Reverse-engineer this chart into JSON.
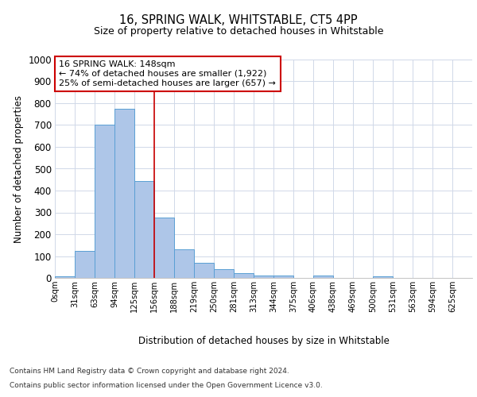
{
  "title": "16, SPRING WALK, WHITSTABLE, CT5 4PP",
  "subtitle": "Size of property relative to detached houses in Whitstable",
  "xlabel": "Distribution of detached houses by size in Whitstable",
  "ylabel": "Number of detached properties",
  "bar_color": "#aec6e8",
  "bar_edge_color": "#5a9fd4",
  "background_color": "#ffffff",
  "grid_color": "#d0d8e8",
  "categories": [
    "0sqm",
    "31sqm",
    "63sqm",
    "94sqm",
    "125sqm",
    "156sqm",
    "188sqm",
    "219sqm",
    "250sqm",
    "281sqm",
    "313sqm",
    "344sqm",
    "375sqm",
    "406sqm",
    "438sqm",
    "469sqm",
    "500sqm",
    "531sqm",
    "563sqm",
    "594sqm",
    "625sqm"
  ],
  "values": [
    8,
    125,
    700,
    775,
    445,
    275,
    130,
    70,
    40,
    23,
    12,
    12,
    0,
    10,
    0,
    0,
    8,
    0,
    0,
    0,
    0
  ],
  "ylim": [
    0,
    1000
  ],
  "yticks": [
    0,
    100,
    200,
    300,
    400,
    500,
    600,
    700,
    800,
    900,
    1000
  ],
  "property_line_x": 5.0,
  "annotation_text_line1": "16 SPRING WALK: 148sqm",
  "annotation_text_line2": "← 74% of detached houses are smaller (1,922)",
  "annotation_text_line3": "25% of semi-detached houses are larger (657) →",
  "annotation_box_color": "#ffffff",
  "annotation_box_edge_color": "#cc0000",
  "property_line_color": "#cc0000",
  "footer_line1": "Contains HM Land Registry data © Crown copyright and database right 2024.",
  "footer_line2": "Contains public sector information licensed under the Open Government Licence v3.0."
}
